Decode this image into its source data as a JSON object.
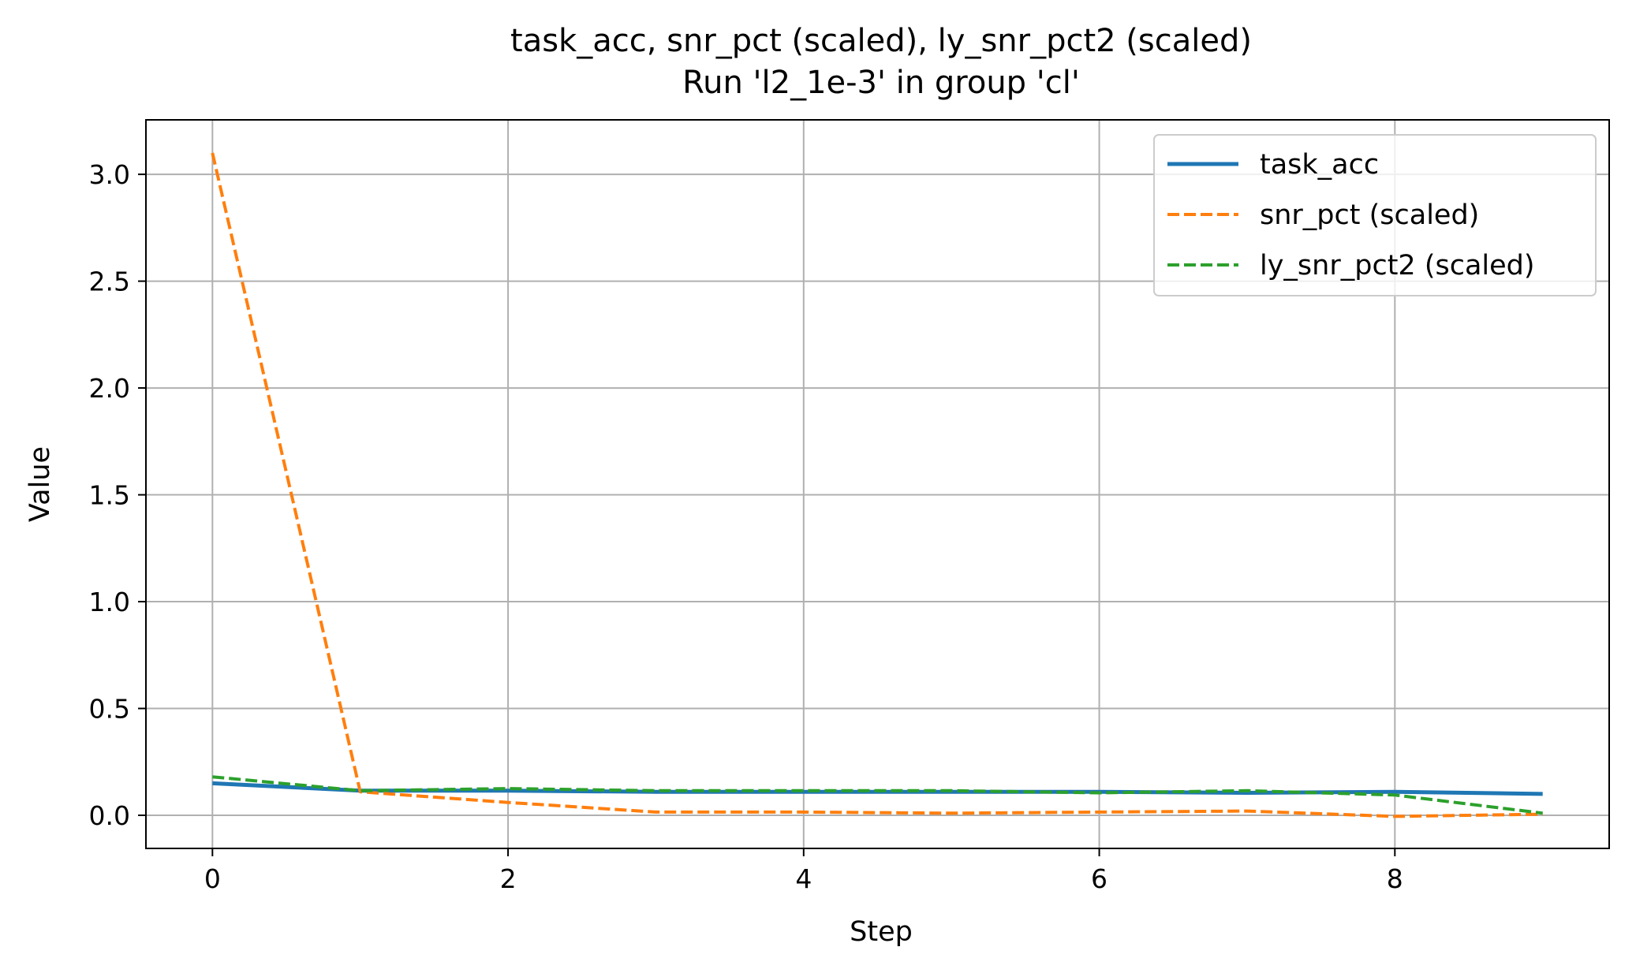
{
  "chart_data": {
    "type": "line",
    "title": "task_acc, snr_pct (scaled), ly_snr_pct2 (scaled)",
    "subtitle": "Run 'l2_1e-3' in group 'cl'",
    "xlabel": "Step",
    "ylabel": "Value",
    "xlim": [
      -0.45,
      9.45
    ],
    "ylim": [
      -0.155,
      3.255
    ],
    "grid": true,
    "legend_position": "upper-right",
    "x_ticks": [
      0,
      2,
      4,
      6,
      8
    ],
    "x_tick_labels": [
      "0",
      "2",
      "4",
      "6",
      "8"
    ],
    "y_ticks": [
      0.0,
      0.5,
      1.0,
      1.5,
      2.0,
      2.5,
      3.0
    ],
    "y_tick_labels": [
      "0.0",
      "0.5",
      "1.0",
      "1.5",
      "2.0",
      "2.5",
      "3.0"
    ],
    "x": [
      0,
      1,
      2,
      3,
      4,
      5,
      6,
      7,
      8,
      9
    ],
    "series": [
      {
        "name": "task_acc",
        "color": "#1f77b4",
        "style": "solid",
        "values": [
          0.15,
          0.115,
          0.115,
          0.11,
          0.11,
          0.11,
          0.11,
          0.105,
          0.11,
          0.1
        ]
      },
      {
        "name": "snr_pct (scaled)",
        "color": "#ff7f0e",
        "style": "dashed",
        "values": [
          3.1,
          0.11,
          0.06,
          0.015,
          0.015,
          0.01,
          0.015,
          0.02,
          -0.005,
          0.005
        ]
      },
      {
        "name": "ly_snr_pct2 (scaled)",
        "color": "#2ca02c",
        "style": "dashed",
        "values": [
          0.18,
          0.115,
          0.125,
          0.115,
          0.115,
          0.115,
          0.105,
          0.115,
          0.095,
          0.01
        ]
      }
    ]
  }
}
